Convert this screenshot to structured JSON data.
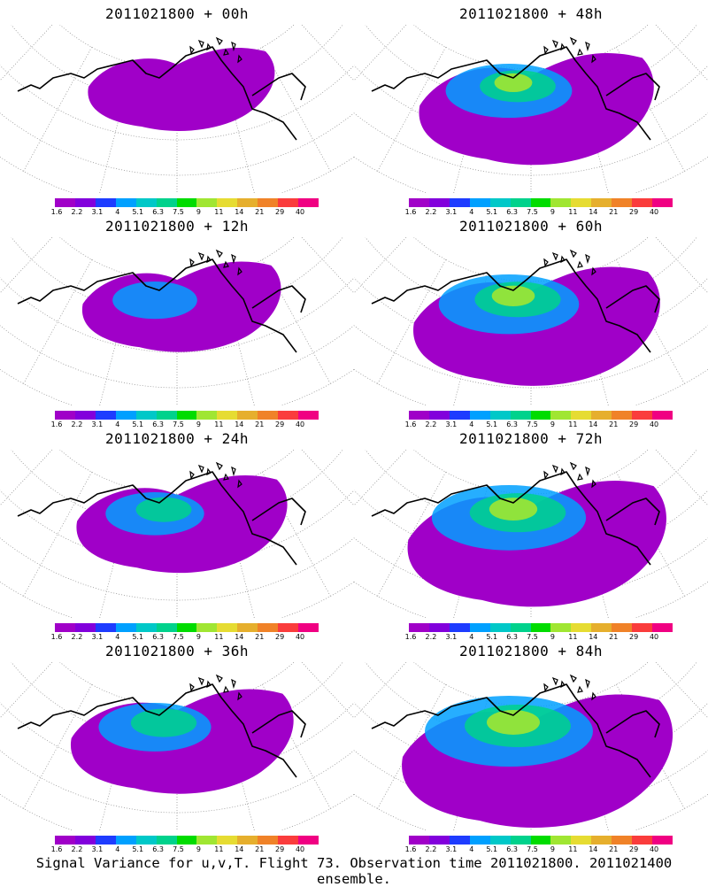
{
  "panels": [
    {
      "title": "2011021800 + 00h",
      "lead_hours": 0
    },
    {
      "title": "2011021800 + 48h",
      "lead_hours": 48
    },
    {
      "title": "2011021800 + 12h",
      "lead_hours": 12
    },
    {
      "title": "2011021800 + 60h",
      "lead_hours": 60
    },
    {
      "title": "2011021800 + 24h",
      "lead_hours": 24
    },
    {
      "title": "2011021800 + 72h",
      "lead_hours": 72
    },
    {
      "title": "2011021800 + 36h",
      "lead_hours": 36
    },
    {
      "title": "2011021800 + 84h",
      "lead_hours": 84
    }
  ],
  "colorbar": {
    "colors": [
      "#a000c8",
      "#8200dc",
      "#1e3cff",
      "#00a0ff",
      "#00c8c8",
      "#00d28c",
      "#00dc00",
      "#a0e632",
      "#e6dc32",
      "#e6af2d",
      "#f08228",
      "#fa3c3c",
      "#f00082"
    ],
    "tick_labels": [
      "1.6",
      "2.2",
      "3.1",
      "4",
      "5.1",
      "6.3",
      "7.5",
      "9",
      "11",
      "14",
      "21",
      "29",
      "40"
    ]
  },
  "caption": "Signal Variance for u,v,T. Flight 73. Observation time 2011021800. 2011021400 ensemble."
}
